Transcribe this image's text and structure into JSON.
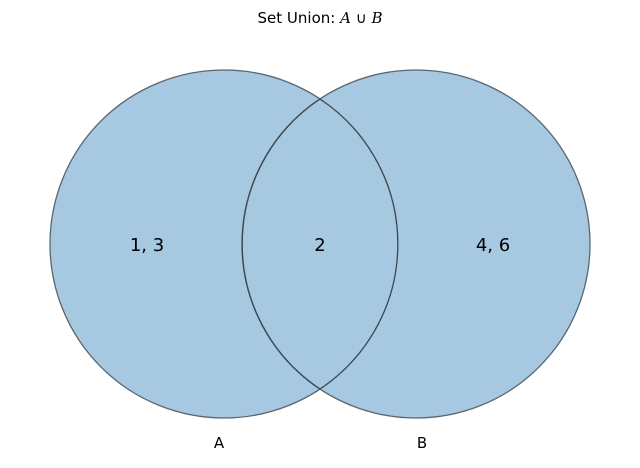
{
  "title": {
    "prefix": "Set Union: ",
    "set_a": "A",
    "operator": " ∪ ",
    "set_b": "B"
  },
  "sets": {
    "a": {
      "label": "A",
      "only_elements": "1, 3"
    },
    "b": {
      "label": "B",
      "only_elements": "4, 6"
    },
    "intersection": {
      "elements": "2"
    }
  },
  "colors": {
    "fill": "#a6c8e0",
    "edge": "#5a6670",
    "overlap_edge": "#3c4650"
  }
}
